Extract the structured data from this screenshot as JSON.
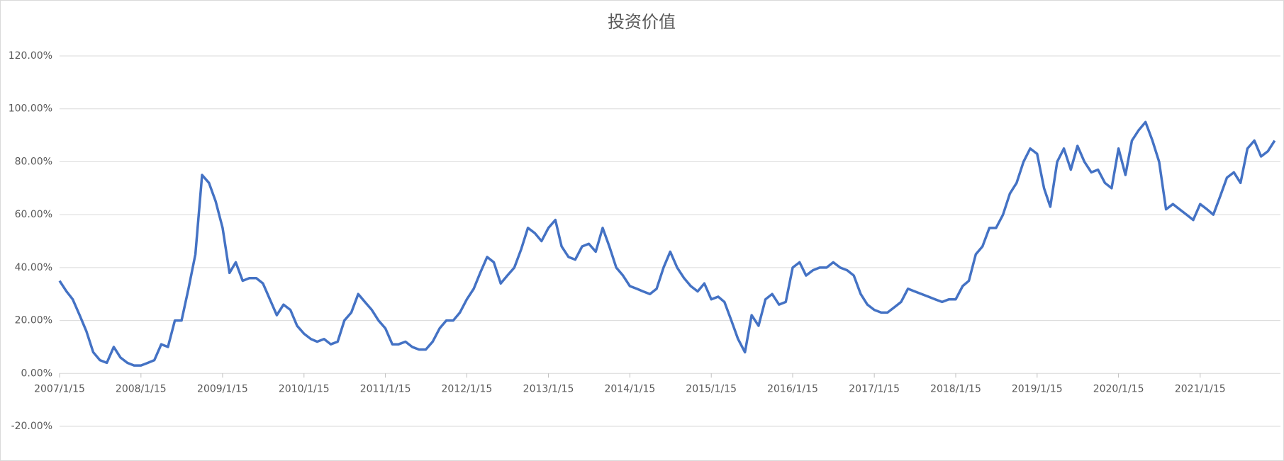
{
  "chart_data": {
    "type": "line",
    "title": "投资价值",
    "x": [
      "2007/1/15",
      "2007/2/15",
      "2007/3/15",
      "2007/4/15",
      "2007/5/15",
      "2007/6/15",
      "2007/7/15",
      "2007/8/15",
      "2007/9/15",
      "2007/10/15",
      "2007/11/15",
      "2007/12/15",
      "2008/1/15",
      "2008/2/15",
      "2008/3/15",
      "2008/4/15",
      "2008/5/15",
      "2008/6/15",
      "2008/7/15",
      "2008/8/15",
      "2008/9/15",
      "2008/10/15",
      "2008/11/15",
      "2008/12/15",
      "2009/1/15",
      "2009/2/15",
      "2009/3/15",
      "2009/4/15",
      "2009/5/15",
      "2009/6/15",
      "2009/7/15",
      "2009/8/15",
      "2009/9/15",
      "2009/10/15",
      "2009/11/15",
      "2009/12/15",
      "2010/1/15",
      "2010/2/15",
      "2010/3/15",
      "2010/4/15",
      "2010/5/15",
      "2010/6/15",
      "2010/7/15",
      "2010/8/15",
      "2010/9/15",
      "2010/10/15",
      "2010/11/15",
      "2010/12/15",
      "2011/1/15",
      "2011/2/15",
      "2011/3/15",
      "2011/4/15",
      "2011/5/15",
      "2011/6/15",
      "2011/7/15",
      "2011/8/15",
      "2011/9/15",
      "2011/10/15",
      "2011/11/15",
      "2011/12/15",
      "2012/1/15",
      "2012/2/15",
      "2012/3/15",
      "2012/4/15",
      "2012/5/15",
      "2012/6/15",
      "2012/7/15",
      "2012/8/15",
      "2012/9/15",
      "2012/10/15",
      "2012/11/15",
      "2012/12/15",
      "2013/1/15",
      "2013/2/15",
      "2013/3/15",
      "2013/4/15",
      "2013/5/15",
      "2013/6/15",
      "2013/7/15",
      "2013/8/15",
      "2013/9/15",
      "2013/10/15",
      "2013/11/15",
      "2013/12/15",
      "2014/1/15",
      "2014/2/15",
      "2014/3/15",
      "2014/4/15",
      "2014/5/15",
      "2014/6/15",
      "2014/7/15",
      "2014/8/15",
      "2014/9/15",
      "2014/10/15",
      "2014/11/15",
      "2014/12/15",
      "2015/1/15",
      "2015/2/15",
      "2015/3/15",
      "2015/4/15",
      "2015/5/15",
      "2015/6/15",
      "2015/7/15",
      "2015/8/15",
      "2015/9/15",
      "2015/10/15",
      "2015/11/15",
      "2015/12/15",
      "2016/1/15",
      "2016/2/15",
      "2016/3/15",
      "2016/4/15",
      "2016/5/15",
      "2016/6/15",
      "2016/7/15",
      "2016/8/15",
      "2016/9/15",
      "2016/10/15",
      "2016/11/15",
      "2016/12/15",
      "2017/1/15",
      "2017/2/15",
      "2017/3/15",
      "2017/4/15",
      "2017/5/15",
      "2017/6/15",
      "2017/7/15",
      "2017/8/15",
      "2017/9/15",
      "2017/10/15",
      "2017/11/15",
      "2017/12/15",
      "2018/1/15",
      "2018/2/15",
      "2018/3/15",
      "2018/4/15",
      "2018/5/15",
      "2018/6/15",
      "2018/7/15",
      "2018/8/15",
      "2018/9/15",
      "2018/10/15",
      "2018/11/15",
      "2018/12/15",
      "2019/1/15",
      "2019/2/15",
      "2019/3/15",
      "2019/4/15",
      "2019/5/15",
      "2019/6/15",
      "2019/7/15",
      "2019/8/15",
      "2019/9/15",
      "2019/10/15",
      "2019/11/15",
      "2019/12/15",
      "2020/1/15",
      "2020/2/15",
      "2020/3/15",
      "2020/4/15",
      "2020/5/15",
      "2020/6/15",
      "2020/7/15",
      "2020/8/15",
      "2020/9/15",
      "2020/10/15",
      "2020/11/15",
      "2020/12/15",
      "2021/1/15",
      "2021/2/15",
      "2021/3/15",
      "2021/4/15",
      "2021/5/15",
      "2021/6/15",
      "2021/7/15",
      "2021/8/15",
      "2021/9/15",
      "2021/10/15",
      "2021/11/15",
      "2021/12/15"
    ],
    "series": [
      {
        "color": "#4472c4",
        "values": [
          35,
          31,
          28,
          22,
          16,
          8,
          5,
          4,
          10,
          6,
          4,
          3,
          3,
          4,
          5,
          11,
          10,
          20,
          20,
          32,
          45,
          75,
          72,
          65,
          55,
          38,
          42,
          35,
          36,
          36,
          34,
          28,
          22,
          26,
          24,
          18,
          15,
          13,
          12,
          13,
          11,
          12,
          20,
          23,
          30,
          27,
          24,
          20,
          17,
          11,
          11,
          12,
          10,
          9,
          9,
          12,
          17,
          20,
          20,
          23,
          28,
          32,
          38,
          44,
          42,
          34,
          37,
          40,
          47,
          55,
          53,
          50,
          55,
          58,
          48,
          44,
          43,
          48,
          49,
          46,
          55,
          48,
          40,
          37,
          33,
          32,
          31,
          30,
          32,
          40,
          46,
          40,
          36,
          33,
          31,
          34,
          28,
          29,
          27,
          20,
          13,
          8,
          22,
          18,
          28,
          30,
          26,
          27,
          40,
          42,
          37,
          39,
          40,
          40,
          42,
          40,
          39,
          37,
          30,
          26,
          24,
          23,
          23,
          25,
          27,
          32,
          31,
          30,
          29,
          28,
          27,
          28,
          28,
          33,
          35,
          45,
          48,
          55,
          55,
          60,
          68,
          72,
          80,
          85,
          83,
          70,
          63,
          80,
          85,
          77,
          86,
          80,
          76,
          77,
          72,
          70,
          85,
          75,
          88,
          92,
          95,
          88,
          80,
          62,
          64,
          62,
          60,
          58,
          64,
          62,
          60,
          67,
          74,
          76,
          72,
          85,
          88,
          82,
          84,
          88
        ]
      }
    ],
    "xlim": [
      "2007/1/15",
      "2022/1/10"
    ],
    "xticks": [
      "2007/1/15",
      "2008/1/15",
      "2009/1/15",
      "2010/1/15",
      "2011/1/15",
      "2012/1/15",
      "2013/1/15",
      "2014/1/15",
      "2015/1/15",
      "2016/1/15",
      "2017/1/15",
      "2018/1/15",
      "2019/1/15",
      "2020/1/15",
      "2021/1/15"
    ],
    "ylim": [
      -20,
      120
    ],
    "yticks": [
      {
        "value": -20,
        "label": "-20.00%"
      },
      {
        "value": 0,
        "label": "0.00%"
      },
      {
        "value": 20,
        "label": "20.00%"
      },
      {
        "value": 40,
        "label": "40.00%"
      },
      {
        "value": 60,
        "label": "60.00%"
      },
      {
        "value": 80,
        "label": "80.00%"
      },
      {
        "value": 100,
        "label": "100.00%"
      },
      {
        "value": 120,
        "label": "120.00%"
      }
    ],
    "grid": true
  }
}
